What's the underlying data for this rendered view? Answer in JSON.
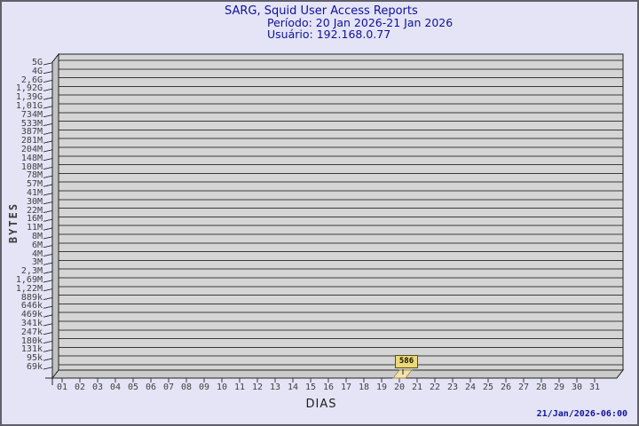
{
  "window": {
    "background": "#e4e4f6",
    "border_color": "#60606c"
  },
  "title": {
    "line1": "SARG, Squid User Access Reports",
    "line2": "Período: 20 Jan 2026-21 Jan 2026",
    "line3": "Usuário: 192.168.0.77"
  },
  "footer": {
    "timestamp": "21/Jan/2026-06:00"
  },
  "chart_data": {
    "type": "bar",
    "title": "SARG, Squid User Access Reports",
    "subtitle": [
      "Período: 20 Jan 2026-21 Jan 2026",
      "Usuário: 192.168.0.77"
    ],
    "xlabel": "DIAS",
    "ylabel": "BYTES",
    "x_categories": [
      "01",
      "02",
      "03",
      "04",
      "05",
      "06",
      "07",
      "08",
      "09",
      "10",
      "11",
      "12",
      "13",
      "14",
      "15",
      "16",
      "17",
      "18",
      "19",
      "20",
      "21",
      "22",
      "23",
      "24",
      "25",
      "26",
      "27",
      "28",
      "29",
      "30",
      "31"
    ],
    "y_tick_labels": [
      "5G",
      "4G",
      "2,6G",
      "1,92G",
      "1,39G",
      "1,01G",
      "734M",
      "533M",
      "387M",
      "281M",
      "204M",
      "148M",
      "108M",
      "78M",
      "57M",
      "41M",
      "30M",
      "22M",
      "16M",
      "11M",
      "8M",
      "6M",
      "4M",
      "3M",
      "2,3M",
      "1,69M",
      "1,22M",
      "889k",
      "646k",
      "469k",
      "341k",
      "247k",
      "180k",
      "131k",
      "95k",
      "69k"
    ],
    "ylim": [
      "69k",
      "5G"
    ],
    "grid": true,
    "legend_position": "none",
    "style": "3d-bar",
    "series": [
      {
        "name": "bytes_per_day",
        "points": [
          {
            "x": "20",
            "value": 586,
            "display_label": "586"
          }
        ]
      }
    ],
    "colors": {
      "bar": "#f3e3ae",
      "bar_edge": "#9c8a40",
      "bar_label_bg": "#ecd878",
      "bar_label_border": "#55511a",
      "plot_wall": "#d5d5d5",
      "plot_side": "#c3c3c3",
      "plot_floor": "#cbcbcb",
      "gridline": "#3a3a3a",
      "frame": "#222222",
      "title_text": "#10109b",
      "axis_text": "#3f3f3f",
      "timestamp_text": "#14149a"
    }
  }
}
